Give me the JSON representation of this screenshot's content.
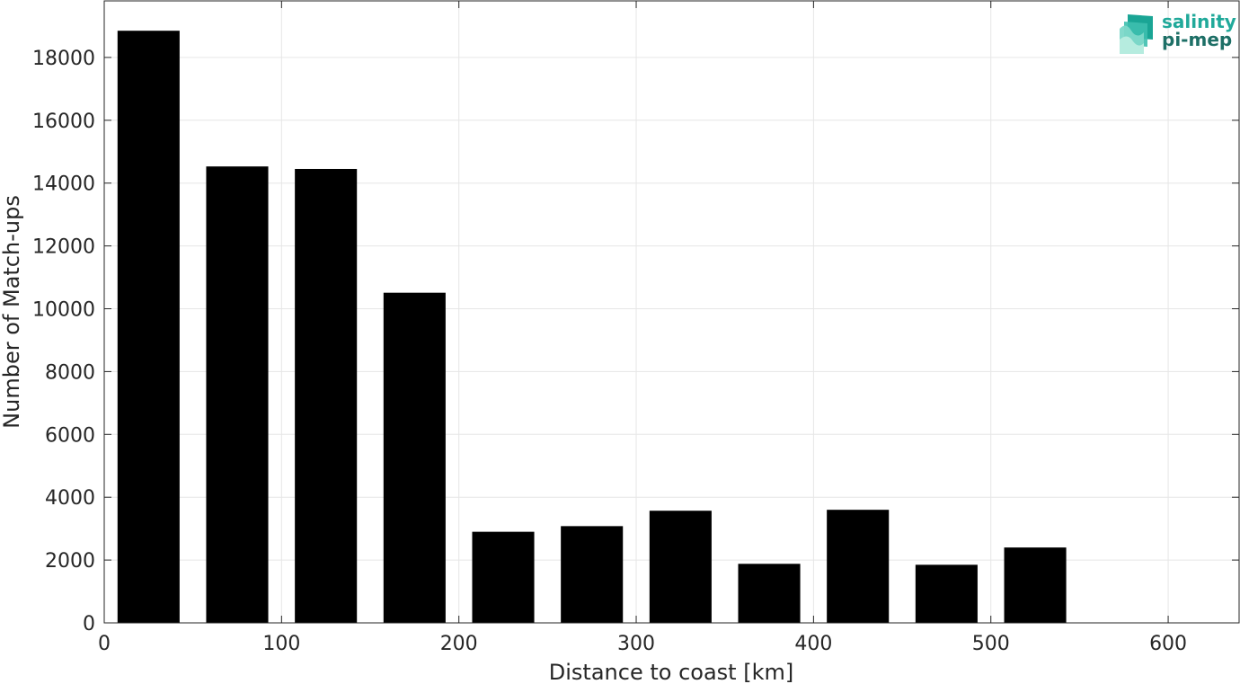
{
  "chart_data": {
    "type": "bar",
    "x": [
      25,
      75,
      125,
      175,
      225,
      275,
      325,
      375,
      425,
      475,
      525,
      575,
      625
    ],
    "values": [
      18850,
      14530,
      14450,
      10510,
      2900,
      3080,
      3570,
      1880,
      3600,
      1850,
      2400,
      0,
      0
    ],
    "bin_width": 50,
    "xlabel": "Distance to coast [km]",
    "ylabel": "Number of Match-ups",
    "xlim": [
      0,
      640
    ],
    "ylim": [
      0,
      19800
    ],
    "xticks": [
      0,
      100,
      200,
      300,
      400,
      500,
      600
    ],
    "yticks": [
      0,
      2000,
      4000,
      6000,
      8000,
      10000,
      12000,
      14000,
      16000,
      18000
    ],
    "grid": true,
    "bar_color": "#000000"
  },
  "logo": {
    "line1": "salinity",
    "line2": "pi-mep",
    "colors": [
      "#20a99a",
      "#1d6f66"
    ]
  }
}
